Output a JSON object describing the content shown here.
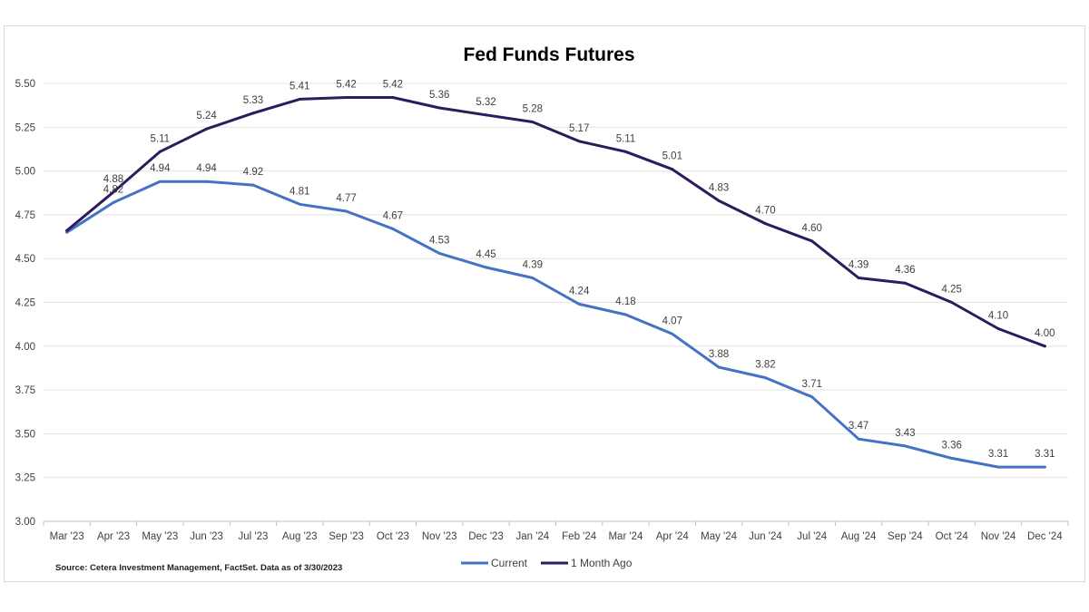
{
  "chart_data": {
    "type": "line",
    "title": "Fed Funds Futures",
    "xlabel": "",
    "ylabel": "",
    "categories": [
      "Mar '23",
      "Apr '23",
      "May '23",
      "Jun '23",
      "Jul '23",
      "Aug '23",
      "Sep '23",
      "Oct '23",
      "Nov '23",
      "Dec '23",
      "Jan '24",
      "Feb '24",
      "Mar '24",
      "Apr '24",
      "May '24",
      "Jun '24",
      "Jul '24",
      "Aug '24",
      "Sep '24",
      "Oct '24",
      "Nov '24",
      "Dec '24"
    ],
    "ylim": [
      3.0,
      5.5
    ],
    "yticks": [
      "3.00",
      "3.25",
      "3.50",
      "3.75",
      "4.00",
      "4.25",
      "4.50",
      "4.75",
      "5.00",
      "5.25",
      "5.50"
    ],
    "grid": "horizontal",
    "legend_position": "bottom",
    "series": [
      {
        "name": "Current",
        "color": "#4472C4",
        "values": [
          4.65,
          4.82,
          4.94,
          4.94,
          4.92,
          4.81,
          4.77,
          4.67,
          4.53,
          4.45,
          4.39,
          4.24,
          4.18,
          4.07,
          3.88,
          3.82,
          3.71,
          3.47,
          3.43,
          3.36,
          3.31,
          3.31
        ],
        "labels": [
          "",
          "4.82",
          "4.94",
          "4.94",
          "4.92",
          "4.81",
          "4.77",
          "4.67",
          "4.53",
          "4.45",
          "4.39",
          "4.24",
          "4.18",
          "4.07",
          "3.88",
          "3.82",
          "3.71",
          "3.47",
          "3.43",
          "3.36",
          "3.31",
          "3.31"
        ]
      },
      {
        "name": "1 Month Ago",
        "color": "#2E1A5C",
        "values": [
          4.66,
          4.88,
          5.11,
          5.24,
          5.33,
          5.41,
          5.42,
          5.42,
          5.36,
          5.32,
          5.28,
          5.17,
          5.11,
          5.01,
          4.83,
          4.7,
          4.6,
          4.39,
          4.36,
          4.25,
          4.1,
          4.0
        ],
        "labels": [
          "",
          "4.88",
          "5.11",
          "5.24",
          "5.33",
          "5.41",
          "5.42",
          "5.42",
          "5.36",
          "5.32",
          "5.28",
          "5.17",
          "5.11",
          "5.01",
          "4.83",
          "4.70",
          "4.60",
          "4.39",
          "4.36",
          "4.25",
          "4.10",
          "4.00"
        ]
      }
    ],
    "source": "Source: Cetera Investment Management, FactSet. Data as of 3/30/2023"
  }
}
